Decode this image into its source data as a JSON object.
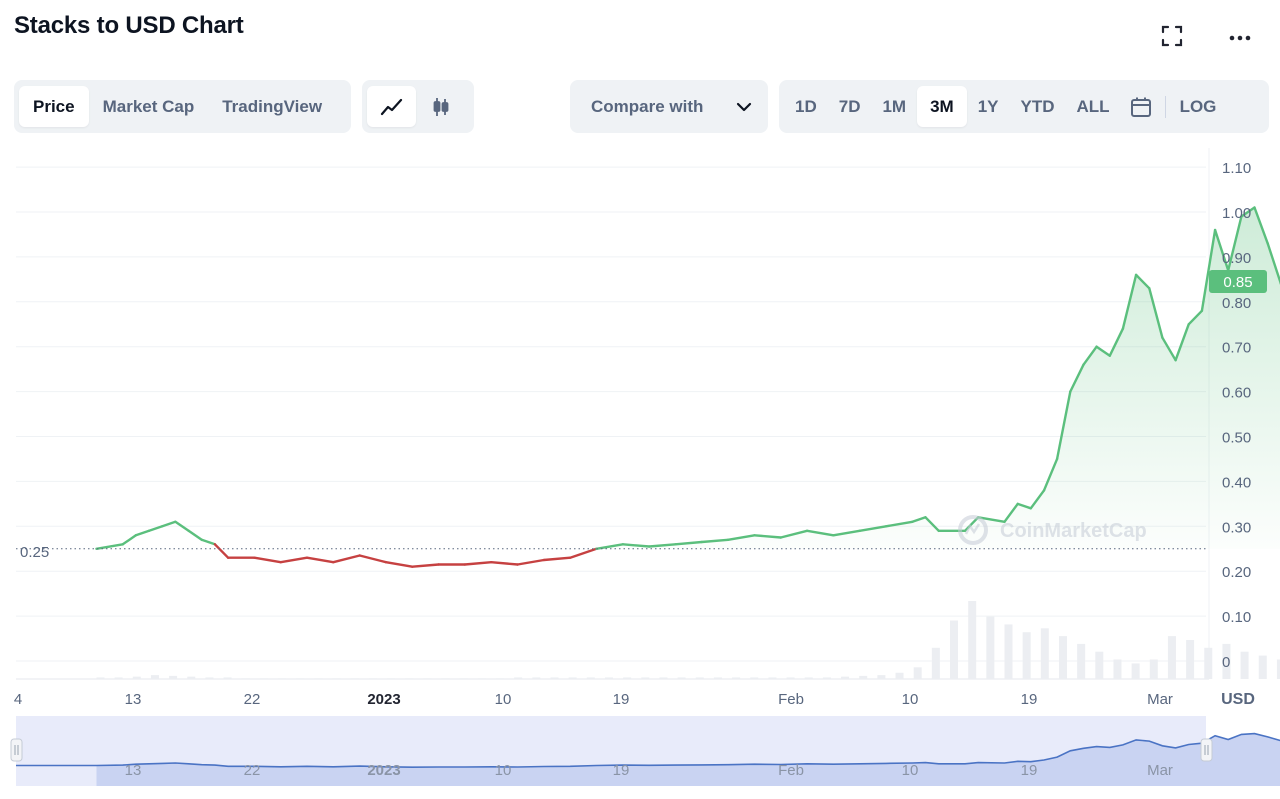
{
  "header": {
    "title": "Stacks to USD Chart"
  },
  "tabs": {
    "items": [
      "Price",
      "Market Cap",
      "TradingView"
    ],
    "active": 0
  },
  "chart_types": {
    "items": [
      "line-chart",
      "candlestick-chart"
    ],
    "active": 0
  },
  "compare": {
    "label": "Compare with"
  },
  "ranges": {
    "items": [
      "1D",
      "7D",
      "1M",
      "3M",
      "1Y",
      "YTD",
      "ALL"
    ],
    "active": "3M",
    "log_label": "LOG"
  },
  "watermark": "CoinMarketCap",
  "colors": {
    "up": "#16c784",
    "down": "#ea3943",
    "line_up": "#5bbf7d",
    "line_down": "#c64141",
    "navigator": "#4a73c4"
  },
  "chart_data": {
    "type": "line",
    "title": "Stacks to USD Chart",
    "ylabel": "USD",
    "ylim": [
      0,
      1.1
    ],
    "yticks": [
      "1.10",
      "1.00",
      "0.90",
      "0.80",
      "0.70",
      "0.60",
      "0.50",
      "0.40",
      "0.30",
      "0.20",
      "0.10",
      "0"
    ],
    "current_price": "0.85",
    "reference_price": "0.25",
    "x_ticks": [
      "4",
      "13",
      "22",
      "2023",
      "10",
      "19",
      "Feb",
      "10",
      "19",
      "Mar"
    ],
    "navigator_ticks": [
      "13",
      "22",
      "2023",
      "10",
      "19",
      "Feb",
      "10",
      "19",
      "Mar"
    ],
    "price_series": [
      [
        "Dec 7",
        0.25
      ],
      [
        "Dec 9",
        0.26
      ],
      [
        "Dec 10",
        0.28
      ],
      [
        "Dec 11",
        0.29
      ],
      [
        "Dec 12",
        0.3
      ],
      [
        "Dec 13",
        0.31
      ],
      [
        "Dec 14",
        0.29
      ],
      [
        "Dec 15",
        0.27
      ],
      [
        "Dec 16",
        0.26
      ],
      [
        "Dec 17",
        0.23
      ],
      [
        "Dec 19",
        0.23
      ],
      [
        "Dec 21",
        0.22
      ],
      [
        "Dec 23",
        0.23
      ],
      [
        "Dec 25",
        0.22
      ],
      [
        "Dec 27",
        0.235
      ],
      [
        "Dec 29",
        0.22
      ],
      [
        "Dec 31",
        0.21
      ],
      [
        "Jan 2",
        0.215
      ],
      [
        "Jan 4",
        0.215
      ],
      [
        "Jan 6",
        0.22
      ],
      [
        "Jan 8",
        0.215
      ],
      [
        "Jan 10",
        0.225
      ],
      [
        "Jan 12",
        0.23
      ],
      [
        "Jan 14",
        0.25
      ],
      [
        "Jan 16",
        0.26
      ],
      [
        "Jan 18",
        0.255
      ],
      [
        "Jan 20",
        0.26
      ],
      [
        "Jan 22",
        0.265
      ],
      [
        "Jan 24",
        0.27
      ],
      [
        "Jan 26",
        0.28
      ],
      [
        "Jan 28",
        0.275
      ],
      [
        "Jan 30",
        0.29
      ],
      [
        "Feb 1",
        0.28
      ],
      [
        "Feb 3",
        0.29
      ],
      [
        "Feb 5",
        0.3
      ],
      [
        "Feb 7",
        0.31
      ],
      [
        "Feb 8",
        0.32
      ],
      [
        "Feb 9",
        0.29
      ],
      [
        "Feb 11",
        0.29
      ],
      [
        "Feb 12",
        0.32
      ],
      [
        "Feb 14",
        0.31
      ],
      [
        "Feb 15",
        0.35
      ],
      [
        "Feb 16",
        0.34
      ],
      [
        "Feb 17",
        0.38
      ],
      [
        "Feb 18",
        0.45
      ],
      [
        "Feb 19",
        0.6
      ],
      [
        "Feb 20",
        0.66
      ],
      [
        "Feb 21",
        0.7
      ],
      [
        "Feb 22",
        0.68
      ],
      [
        "Feb 23",
        0.74
      ],
      [
        "Feb 24",
        0.86
      ],
      [
        "Feb 25",
        0.83
      ],
      [
        "Feb 26",
        0.72
      ],
      [
        "Feb 27",
        0.67
      ],
      [
        "Feb 28",
        0.75
      ],
      [
        "Mar 1",
        0.78
      ],
      [
        "Mar 2",
        0.96
      ],
      [
        "Mar 3",
        0.87
      ],
      [
        "Mar 4",
        0.99
      ],
      [
        "Mar 5",
        1.01
      ],
      [
        "Mar 6",
        0.93
      ],
      [
        "Mar 7",
        0.84
      ],
      [
        "Mar 8",
        0.85
      ]
    ],
    "volume_relative": [
      0.02,
      0.02,
      0.03,
      0.05,
      0.04,
      0.03,
      0.02,
      0.02,
      0.01,
      0.01,
      0.01,
      0.01,
      0.01,
      0.01,
      0.01,
      0.01,
      0.01,
      0.01,
      0.01,
      0.01,
      0.01,
      0.01,
      0.01,
      0.02,
      0.02,
      0.02,
      0.02,
      0.02,
      0.02,
      0.02,
      0.02,
      0.02,
      0.02,
      0.02,
      0.02,
      0.02,
      0.02,
      0.02,
      0.02,
      0.02,
      0.02,
      0.03,
      0.04,
      0.05,
      0.08,
      0.15,
      0.4,
      0.75,
      1.0,
      0.8,
      0.7,
      0.6,
      0.65,
      0.55,
      0.45,
      0.35,
      0.25,
      0.2,
      0.25,
      0.55,
      0.5,
      0.4,
      0.45,
      0.35,
      0.3,
      0.25
    ],
    "grid": true,
    "legend": "none"
  }
}
